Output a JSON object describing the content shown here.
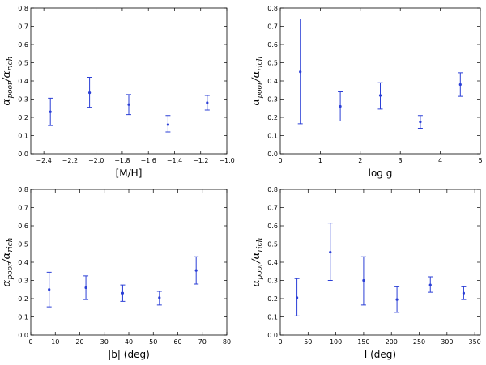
{
  "colors": {
    "series": "#2b3fd6",
    "axes": "#000000"
  },
  "chart_data": [
    {
      "type": "scatter",
      "xlabel": "[M/H]",
      "ylabel": "α_poor/α_rich",
      "ylabel_main": "α",
      "ylabel_sub1": "poor",
      "ylabel_sub2": "rich",
      "xlim": [
        -2.5,
        -1.0
      ],
      "ylim": [
        0.0,
        0.8
      ],
      "xticks": [
        -2.4,
        -2.2,
        -2.0,
        -1.8,
        -1.6,
        -1.4,
        -1.2,
        -1.0
      ],
      "xtick_labels": [
        "−2.4",
        "−2.2",
        "−2.0",
        "−1.8",
        "−1.6",
        "−1.4",
        "−1.2",
        "−1.0"
      ],
      "yticks": [
        0.0,
        0.1,
        0.2,
        0.3,
        0.4,
        0.5,
        0.6,
        0.7,
        0.8
      ],
      "ytick_labels": [
        "0.0",
        "0.1",
        "0.2",
        "0.3",
        "0.4",
        "0.5",
        "0.6",
        "0.7",
        "0.8"
      ],
      "points": [
        {
          "x": -2.35,
          "y": 0.23,
          "ylo": 0.155,
          "yhi": 0.305
        },
        {
          "x": -2.05,
          "y": 0.335,
          "ylo": 0.255,
          "yhi": 0.42
        },
        {
          "x": -1.75,
          "y": 0.27,
          "ylo": 0.215,
          "yhi": 0.325
        },
        {
          "x": -1.45,
          "y": 0.16,
          "ylo": 0.12,
          "yhi": 0.21
        },
        {
          "x": -1.15,
          "y": 0.28,
          "ylo": 0.24,
          "yhi": 0.32
        }
      ]
    },
    {
      "type": "scatter",
      "xlabel": "log g",
      "ylabel": "α_poor/α_rich",
      "ylabel_main": "α",
      "ylabel_sub1": "poor",
      "ylabel_sub2": "rich",
      "xlim": [
        0,
        5
      ],
      "ylim": [
        0.0,
        0.8
      ],
      "xticks": [
        0,
        1,
        2,
        3,
        4,
        5
      ],
      "xtick_labels": [
        "0",
        "1",
        "2",
        "3",
        "4",
        "5"
      ],
      "yticks": [
        0.0,
        0.1,
        0.2,
        0.3,
        0.4,
        0.5,
        0.6,
        0.7,
        0.8
      ],
      "ytick_labels": [
        "0.0",
        "0.1",
        "0.2",
        "0.3",
        "0.4",
        "0.5",
        "0.6",
        "0.7",
        "0.8"
      ],
      "points": [
        {
          "x": 0.5,
          "y": 0.45,
          "ylo": 0.165,
          "yhi": 0.74
        },
        {
          "x": 1.5,
          "y": 0.26,
          "ylo": 0.18,
          "yhi": 0.34
        },
        {
          "x": 2.5,
          "y": 0.32,
          "ylo": 0.245,
          "yhi": 0.39
        },
        {
          "x": 3.5,
          "y": 0.175,
          "ylo": 0.14,
          "yhi": 0.21
        },
        {
          "x": 4.5,
          "y": 0.38,
          "ylo": 0.315,
          "yhi": 0.445
        }
      ]
    },
    {
      "type": "scatter",
      "xlabel": "|b| (deg)",
      "ylabel": "α_poor/α_rich",
      "ylabel_main": "α",
      "ylabel_sub1": "poor",
      "ylabel_sub2": "rich",
      "xlim": [
        0,
        80
      ],
      "ylim": [
        0.0,
        0.8
      ],
      "xticks": [
        0,
        10,
        20,
        30,
        40,
        50,
        60,
        70,
        80
      ],
      "xtick_labels": [
        "0",
        "10",
        "20",
        "30",
        "40",
        "50",
        "60",
        "70",
        "80"
      ],
      "yticks": [
        0.0,
        0.1,
        0.2,
        0.3,
        0.4,
        0.5,
        0.6,
        0.7,
        0.8
      ],
      "ytick_labels": [
        "0.0",
        "0.1",
        "0.2",
        "0.3",
        "0.4",
        "0.5",
        "0.6",
        "0.7",
        "0.8"
      ],
      "points": [
        {
          "x": 7.5,
          "y": 0.25,
          "ylo": 0.155,
          "yhi": 0.345
        },
        {
          "x": 22.5,
          "y": 0.26,
          "ylo": 0.195,
          "yhi": 0.325
        },
        {
          "x": 37.5,
          "y": 0.23,
          "ylo": 0.185,
          "yhi": 0.275
        },
        {
          "x": 52.5,
          "y": 0.205,
          "ylo": 0.165,
          "yhi": 0.24
        },
        {
          "x": 67.5,
          "y": 0.355,
          "ylo": 0.28,
          "yhi": 0.43
        }
      ]
    },
    {
      "type": "scatter",
      "xlabel": "l (deg)",
      "ylabel": "α_poor/α_rich",
      "ylabel_main": "α",
      "ylabel_sub1": "poor",
      "ylabel_sub2": "rich",
      "xlim": [
        0,
        360
      ],
      "ylim": [
        0.0,
        0.8
      ],
      "xticks": [
        0,
        50,
        100,
        150,
        200,
        250,
        300,
        350
      ],
      "xtick_labels": [
        "0",
        "50",
        "100",
        "150",
        "200",
        "250",
        "300",
        "350"
      ],
      "yticks": [
        0.0,
        0.1,
        0.2,
        0.3,
        0.4,
        0.5,
        0.6,
        0.7,
        0.8
      ],
      "ytick_labels": [
        "0.0",
        "0.1",
        "0.2",
        "0.3",
        "0.4",
        "0.5",
        "0.6",
        "0.7",
        "0.8"
      ],
      "points": [
        {
          "x": 30,
          "y": 0.205,
          "ylo": 0.105,
          "yhi": 0.31
        },
        {
          "x": 90,
          "y": 0.455,
          "ylo": 0.3,
          "yhi": 0.615
        },
        {
          "x": 150,
          "y": 0.3,
          "ylo": 0.165,
          "yhi": 0.43
        },
        {
          "x": 210,
          "y": 0.195,
          "ylo": 0.125,
          "yhi": 0.265
        },
        {
          "x": 270,
          "y": 0.275,
          "ylo": 0.235,
          "yhi": 0.32
        },
        {
          "x": 330,
          "y": 0.23,
          "ylo": 0.195,
          "yhi": 0.265
        }
      ]
    }
  ]
}
